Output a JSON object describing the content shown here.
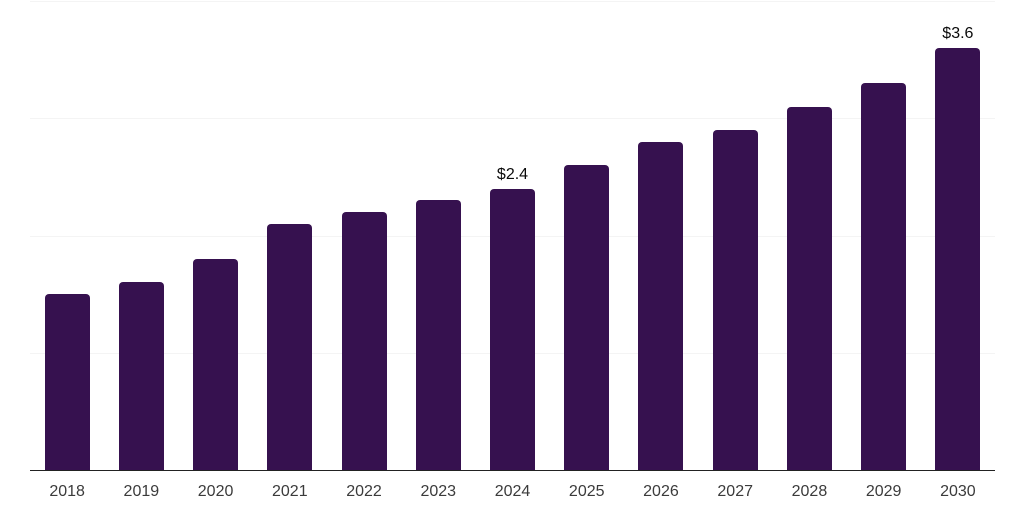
{
  "chart": {
    "background_color": "#ffffff",
    "bar_color": "#36114F",
    "grid_color": "#f4f4f4",
    "axis_line_color": "#222222",
    "tick_label_color": "#3b3b3b",
    "data_label_color": "#0a0a0a"
  },
  "chart_data": {
    "type": "bar",
    "title": "",
    "xlabel": "",
    "ylabel": "",
    "categories": [
      "2018",
      "2019",
      "2020",
      "2021",
      "2022",
      "2023",
      "2024",
      "2025",
      "2026",
      "2027",
      "2028",
      "2029",
      "2030"
    ],
    "values": [
      1.5,
      1.6,
      1.8,
      2.1,
      2.2,
      2.3,
      2.4,
      2.6,
      2.8,
      2.9,
      3.1,
      3.3,
      3.6
    ],
    "data_labels": [
      {
        "category": "2024",
        "text": "$2.4"
      },
      {
        "category": "2030",
        "text": "$3.6"
      }
    ],
    "ylim": [
      0,
      4
    ],
    "gridline_values": [
      1,
      2,
      3,
      4
    ],
    "y_tick_labels_visible": false,
    "grid": true,
    "legend_position": "none"
  }
}
